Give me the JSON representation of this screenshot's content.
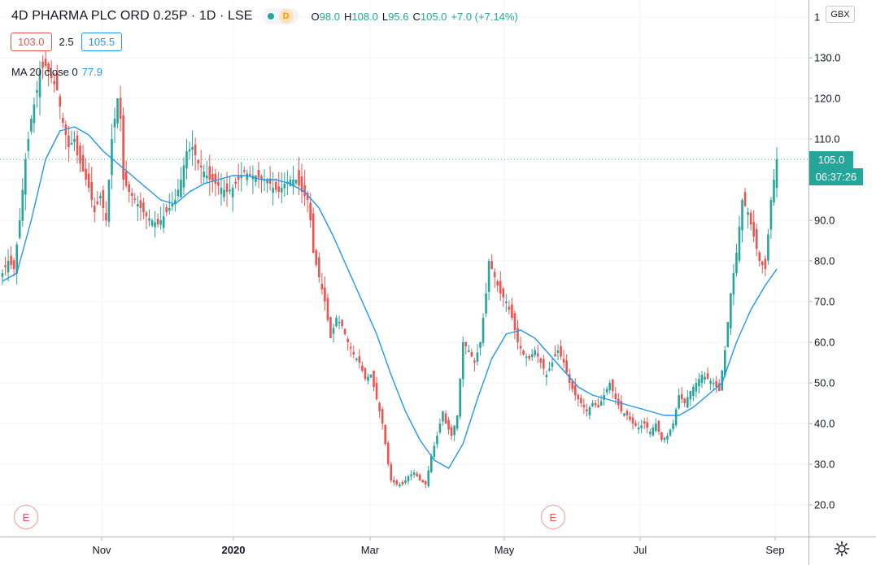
{
  "header": {
    "title": "4D PHARMA PLC ORD 0.25P · 1D · LSE",
    "delay_badge": "D",
    "ohlc": [
      {
        "key": "O",
        "value": "98.0"
      },
      {
        "key": "H",
        "value": "108.0"
      },
      {
        "key": "L",
        "value": "95.6"
      },
      {
        "key": "C",
        "value": "105.0"
      },
      {
        "key": "",
        "value": "+7.0 (+7.14%)"
      }
    ]
  },
  "quote": {
    "bid": "103.0",
    "spread": "2.5",
    "ask": "105.5"
  },
  "indicator": {
    "label": "MA 20 close 0",
    "value": "77.9"
  },
  "price_axis": {
    "currency": "GBX",
    "last_price_label": "105.0",
    "countdown_label": "06:37:26",
    "ticks": [
      "20.0",
      "30.0",
      "40.0",
      "50.0",
      "60.0",
      "70.0",
      "80.0",
      "90.0",
      "100.0",
      "110.0",
      "120.0",
      "130.0",
      "1"
    ]
  },
  "time_axis": {
    "ticks": [
      {
        "label": "Nov",
        "bold": false
      },
      {
        "label": "2020",
        "bold": true
      },
      {
        "label": "Mar",
        "bold": false
      },
      {
        "label": "May",
        "bold": false
      },
      {
        "label": "Jul",
        "bold": false
      },
      {
        "label": "Sep",
        "bold": false
      }
    ]
  },
  "earnings_markers": [
    "E",
    "E"
  ],
  "icons": {
    "settings": "gear-icon",
    "status": "market-status-dot-icon"
  },
  "colors": {
    "up": "#26a69a",
    "down": "#ef5350",
    "ma": "#2196f3",
    "grid": "#f0f3fa",
    "axis_text": "#131722"
  },
  "chart_data": {
    "type": "candlestick",
    "title": "4D PHARMA PLC ORD 0.25P · 1D · LSE",
    "ylim": [
      15,
      140
    ],
    "y_ticks": [
      20,
      30,
      40,
      50,
      60,
      70,
      80,
      90,
      100,
      110,
      120,
      130
    ],
    "grid": true,
    "last_price": 105.0,
    "x_ticks": [
      "Nov",
      "2020",
      "Mar",
      "May",
      "Jul",
      "Sep"
    ],
    "close_path": [
      [
        0,
        77
      ],
      [
        2,
        80
      ],
      [
        4,
        78
      ],
      [
        6,
        90
      ],
      [
        8,
        105
      ],
      [
        10,
        115
      ],
      [
        12,
        122
      ],
      [
        13,
        127
      ],
      [
        15,
        128
      ],
      [
        17,
        125
      ],
      [
        19,
        122
      ],
      [
        21,
        114
      ],
      [
        23,
        108
      ],
      [
        25,
        110
      ],
      [
        26,
        106
      ],
      [
        28,
        102
      ],
      [
        30,
        98
      ],
      [
        32,
        92
      ],
      [
        34,
        96
      ],
      [
        36,
        90
      ],
      [
        38,
        110
      ],
      [
        40,
        120
      ],
      [
        41,
        115
      ],
      [
        42,
        100
      ],
      [
        44,
        97
      ],
      [
        46,
        95
      ],
      [
        48,
        93
      ],
      [
        50,
        91
      ],
      [
        52,
        90
      ],
      [
        54,
        89
      ],
      [
        56,
        91
      ],
      [
        58,
        93
      ],
      [
        60,
        95
      ],
      [
        62,
        100
      ],
      [
        64,
        107
      ],
      [
        66,
        108
      ],
      [
        68,
        104
      ],
      [
        70,
        102
      ],
      [
        72,
        100
      ],
      [
        74,
        99
      ],
      [
        76,
        98
      ],
      [
        78,
        97
      ],
      [
        80,
        98
      ],
      [
        82,
        100
      ],
      [
        84,
        102
      ],
      [
        86,
        101
      ],
      [
        88,
        101
      ],
      [
        90,
        100
      ],
      [
        92,
        100
      ],
      [
        94,
        98
      ],
      [
        96,
        97
      ],
      [
        98,
        99
      ],
      [
        100,
        100
      ],
      [
        102,
        100
      ],
      [
        104,
        97
      ],
      [
        106,
        95
      ],
      [
        107,
        90
      ],
      [
        108,
        82
      ],
      [
        110,
        76
      ],
      [
        112,
        70
      ],
      [
        114,
        61
      ],
      [
        116,
        66
      ],
      [
        118,
        64
      ],
      [
        120,
        60
      ],
      [
        122,
        57
      ],
      [
        124,
        55
      ],
      [
        126,
        51
      ],
      [
        128,
        52
      ],
      [
        130,
        46
      ],
      [
        132,
        40
      ],
      [
        134,
        30
      ],
      [
        135,
        26
      ],
      [
        137,
        25
      ],
      [
        139,
        25
      ],
      [
        141,
        27
      ],
      [
        143,
        28
      ],
      [
        145,
        26
      ],
      [
        147,
        25
      ],
      [
        149,
        32
      ],
      [
        151,
        37
      ],
      [
        153,
        43
      ],
      [
        154,
        40
      ],
      [
        156,
        37
      ],
      [
        158,
        42
      ],
      [
        160,
        60
      ],
      [
        162,
        58
      ],
      [
        164,
        55
      ],
      [
        166,
        60
      ],
      [
        168,
        72
      ],
      [
        169,
        80
      ],
      [
        171,
        76
      ],
      [
        173,
        72
      ],
      [
        175,
        70
      ],
      [
        177,
        66
      ],
      [
        179,
        60
      ],
      [
        181,
        57
      ],
      [
        183,
        56
      ],
      [
        185,
        58
      ],
      [
        187,
        55
      ],
      [
        189,
        52
      ],
      [
        191,
        55
      ],
      [
        193,
        58
      ],
      [
        195,
        55
      ],
      [
        197,
        50
      ],
      [
        199,
        47
      ],
      [
        201,
        45
      ],
      [
        203,
        43
      ],
      [
        205,
        45
      ],
      [
        207,
        44
      ],
      [
        209,
        47
      ],
      [
        211,
        50
      ],
      [
        213,
        46
      ],
      [
        215,
        43
      ],
      [
        217,
        42
      ],
      [
        219,
        40
      ],
      [
        221,
        39
      ],
      [
        223,
        40
      ],
      [
        225,
        38
      ],
      [
        227,
        40
      ],
      [
        229,
        36
      ],
      [
        231,
        37
      ],
      [
        233,
        40
      ],
      [
        235,
        47
      ],
      [
        237,
        45
      ],
      [
        239,
        48
      ],
      [
        241,
        50
      ],
      [
        243,
        52
      ],
      [
        245,
        51
      ],
      [
        247,
        50
      ],
      [
        249,
        48
      ],
      [
        251,
        58
      ],
      [
        253,
        72
      ],
      [
        255,
        82
      ],
      [
        257,
        95
      ],
      [
        259,
        92
      ],
      [
        261,
        86
      ],
      [
        263,
        80
      ],
      [
        265,
        78
      ],
      [
        267,
        95
      ],
      [
        268,
        100
      ],
      [
        269,
        105
      ]
    ],
    "ma_path": [
      [
        0,
        75
      ],
      [
        5,
        77
      ],
      [
        10,
        90
      ],
      [
        15,
        105
      ],
      [
        20,
        112
      ],
      [
        25,
        113
      ],
      [
        30,
        111
      ],
      [
        35,
        107
      ],
      [
        40,
        104
      ],
      [
        45,
        101
      ],
      [
        50,
        98
      ],
      [
        55,
        95
      ],
      [
        60,
        94
      ],
      [
        65,
        97
      ],
      [
        70,
        99
      ],
      [
        75,
        100
      ],
      [
        80,
        101
      ],
      [
        85,
        101
      ],
      [
        90,
        100
      ],
      [
        95,
        100
      ],
      [
        100,
        99
      ],
      [
        105,
        97
      ],
      [
        110,
        93
      ],
      [
        115,
        86
      ],
      [
        120,
        78
      ],
      [
        125,
        70
      ],
      [
        130,
        62
      ],
      [
        135,
        52
      ],
      [
        140,
        43
      ],
      [
        145,
        36
      ],
      [
        150,
        31
      ],
      [
        155,
        29
      ],
      [
        160,
        35
      ],
      [
        165,
        46
      ],
      [
        170,
        56
      ],
      [
        175,
        62
      ],
      [
        180,
        63
      ],
      [
        185,
        61
      ],
      [
        190,
        57
      ],
      [
        195,
        53
      ],
      [
        200,
        49
      ],
      [
        205,
        47
      ],
      [
        210,
        46
      ],
      [
        215,
        45
      ],
      [
        220,
        44
      ],
      [
        225,
        43
      ],
      [
        230,
        42
      ],
      [
        235,
        42
      ],
      [
        240,
        44
      ],
      [
        245,
        47
      ],
      [
        250,
        50
      ],
      [
        255,
        60
      ],
      [
        260,
        68
      ],
      [
        265,
        74
      ],
      [
        269,
        78
      ]
    ],
    "ma_label": "MA 20 close 0",
    "ma_last": 77.9
  }
}
